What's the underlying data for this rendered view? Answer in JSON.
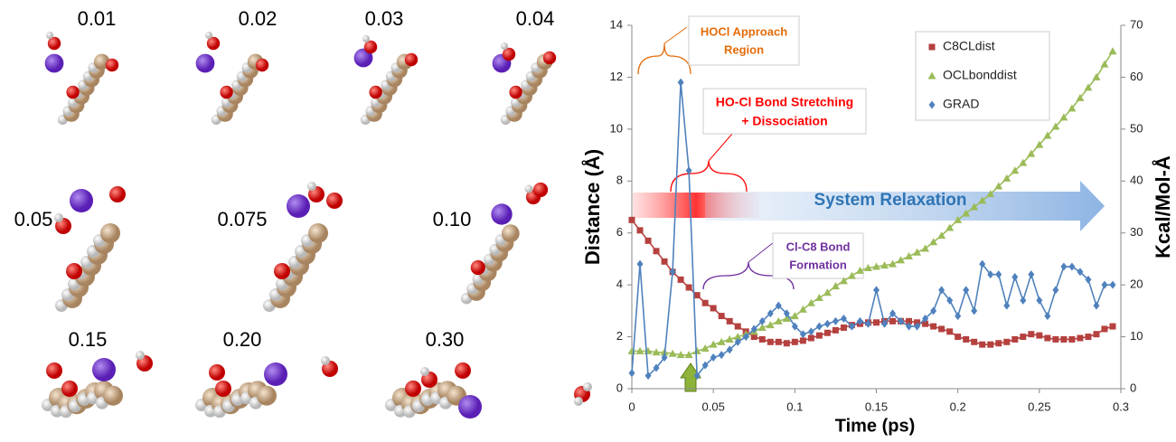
{
  "snapshots": [
    {
      "label": "0.01"
    },
    {
      "label": "0.02"
    },
    {
      "label": "0.03"
    },
    {
      "label": "0.04"
    },
    {
      "label": "0.05"
    },
    {
      "label": "0.075"
    },
    {
      "label": "0.10"
    },
    {
      "label": "0.15"
    },
    {
      "label": "0.20"
    },
    {
      "label": "0.30"
    }
  ],
  "chart_data": {
    "type": "line",
    "x_label": "Time (ps)",
    "y_label": "Distance (Å)",
    "y2_label": "Kcal/Mol-Å",
    "xlim": [
      0,
      0.3
    ],
    "xticks": [
      0,
      0.05,
      0.1,
      0.15,
      0.2,
      0.25,
      0.3
    ],
    "ylim": [
      0,
      14
    ],
    "yticks": [
      0,
      2,
      4,
      6,
      8,
      10,
      12,
      14
    ],
    "y2lim": [
      0,
      70
    ],
    "y2ticks": [
      0,
      10,
      20,
      30,
      40,
      50,
      60,
      70
    ],
    "legend": "upper right",
    "x": [
      0,
      0.005,
      0.01,
      0.015,
      0.02,
      0.025,
      0.03,
      0.035,
      0.04,
      0.045,
      0.05,
      0.055,
      0.06,
      0.065,
      0.07,
      0.075,
      0.08,
      0.085,
      0.09,
      0.095,
      0.1,
      0.105,
      0.11,
      0.115,
      0.12,
      0.125,
      0.13,
      0.135,
      0.14,
      0.145,
      0.15,
      0.155,
      0.16,
      0.165,
      0.17,
      0.175,
      0.18,
      0.185,
      0.19,
      0.195,
      0.2,
      0.205,
      0.21,
      0.215,
      0.22,
      0.225,
      0.23,
      0.235,
      0.24,
      0.245,
      0.25,
      0.255,
      0.26,
      0.265,
      0.27,
      0.275,
      0.28,
      0.285,
      0.29,
      0.295
    ],
    "series": [
      {
        "name": "C8CLdist",
        "color": "#b5413f",
        "marker": "square",
        "values": [
          6.5,
          6.1,
          5.7,
          5.3,
          4.9,
          4.5,
          4.2,
          3.9,
          3.6,
          3.3,
          3.1,
          2.8,
          2.6,
          2.4,
          2.2,
          2.0,
          1.9,
          1.8,
          1.8,
          1.75,
          1.8,
          1.85,
          1.95,
          2.05,
          2.15,
          2.25,
          2.35,
          2.45,
          2.5,
          2.55,
          2.55,
          2.6,
          2.6,
          2.6,
          2.6,
          2.55,
          2.5,
          2.4,
          2.3,
          2.2,
          2.0,
          1.9,
          1.8,
          1.7,
          1.7,
          1.75,
          1.8,
          1.9,
          2.0,
          2.1,
          2.05,
          1.95,
          1.9,
          1.9,
          1.9,
          1.95,
          2.0,
          2.1,
          2.3,
          2.4
        ]
      },
      {
        "name": "OCLbonddist",
        "color": "#9bbb59",
        "marker": "triangle",
        "values": [
          1.45,
          1.45,
          1.45,
          1.4,
          1.4,
          1.35,
          1.3,
          1.3,
          1.45,
          1.55,
          1.7,
          1.8,
          1.9,
          2.0,
          2.1,
          2.2,
          2.35,
          2.45,
          2.6,
          2.7,
          2.8,
          3.05,
          3.3,
          3.5,
          3.7,
          3.95,
          4.15,
          4.35,
          4.55,
          4.65,
          4.7,
          4.75,
          4.8,
          4.95,
          5.1,
          5.25,
          5.4,
          5.65,
          5.9,
          6.2,
          6.5,
          6.75,
          7.0,
          7.25,
          7.5,
          7.8,
          8.1,
          8.4,
          8.7,
          9.05,
          9.4,
          9.75,
          10.1,
          10.45,
          10.8,
          11.2,
          11.6,
          12.0,
          12.5,
          13.0
        ]
      },
      {
        "name": "GRAD",
        "color": "#4f81bd",
        "marker": "diamond",
        "axis": "y2",
        "values": [
          3,
          24,
          2.5,
          4,
          6,
          22.5,
          59,
          42,
          2.5,
          4.5,
          6,
          6.5,
          7.5,
          9,
          10,
          11.5,
          13,
          14.5,
          16,
          14.5,
          12,
          10.5,
          11,
          12,
          12.5,
          13,
          13.5,
          12,
          13,
          12.5,
          19,
          12.5,
          14.5,
          13,
          12,
          12,
          13.5,
          15,
          19,
          17,
          14,
          19,
          15,
          24,
          22,
          22,
          16,
          21.5,
          17,
          22,
          17,
          14,
          19,
          23.5,
          23.5,
          22.5,
          21,
          16,
          20,
          20
        ]
      }
    ],
    "annotations": [
      {
        "lines": [
          "HOCl Approach",
          "Region"
        ],
        "color": "#e46c0a"
      },
      {
        "lines": [
          "HO-Cl Bond Stretching",
          "+ Dissociation"
        ],
        "color": "#ff0000"
      },
      {
        "lines": [
          "System Relaxation"
        ],
        "color": "#2e75b6"
      },
      {
        "lines": [
          "Cl-C8 Bond",
          "Formation"
        ],
        "color": "#7030a0"
      }
    ]
  }
}
